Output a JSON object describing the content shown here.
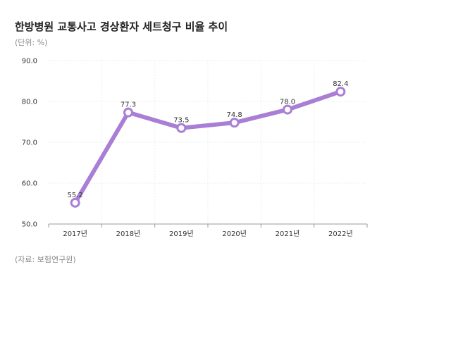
{
  "title": "한방병원 교통사고 경상환자 세트청구 비율 추이",
  "unit_note": "(단위: %)",
  "source_note": "(자료: 보험연구원)",
  "colors": {
    "line": "#a97fd6",
    "marker_fill": "#ffffff",
    "grid": "#eeeeee",
    "axis": "#999999"
  },
  "chart_data": {
    "type": "line",
    "title": "한방병원 교통사고 경상환자 세트청구 비율 추이",
    "xlabel": "",
    "ylabel": "",
    "categories": [
      "2017년",
      "2018년",
      "2019년",
      "2020년",
      "2021년",
      "2022년"
    ],
    "series": [
      {
        "values": [
          55.2,
          77.3,
          73.5,
          74.8,
          78.0,
          82.4
        ]
      }
    ],
    "value_labels": [
      "55.2",
      "77.3",
      "73.5",
      "74.8",
      "78.0",
      "82.4"
    ],
    "ylim": [
      50,
      90
    ],
    "yticks": [
      50,
      60,
      70,
      80,
      90
    ],
    "ytick_labels": [
      "50.0",
      "60.0",
      "70.0",
      "80.0",
      "90.0"
    ],
    "grid": true,
    "legend": "none"
  }
}
